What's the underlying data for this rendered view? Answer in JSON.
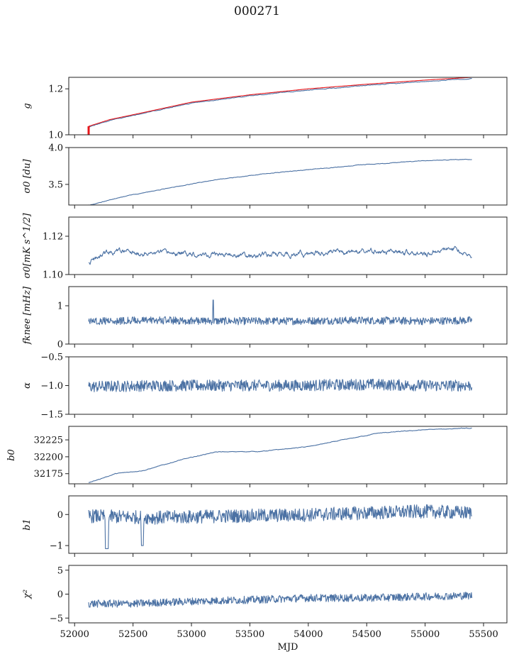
{
  "title": "000271",
  "chart_data": {
    "type": "line",
    "xlabel": "MJD",
    "xlim": [
      51950,
      55700
    ],
    "xticks": [
      52000,
      52500,
      53000,
      53500,
      54000,
      54500,
      55000,
      55500
    ],
    "x_start": 52120,
    "x_end": 55400,
    "colors": {
      "main": "#4c72a4",
      "overlay": "#e8161a"
    },
    "panels": [
      {
        "id": "g",
        "ylabel": "g",
        "ylim": [
          1.0,
          1.25
        ],
        "yticks": [
          1.0,
          1.2
        ],
        "yticklabels": [
          "1.0",
          "1.2"
        ],
        "series": [
          {
            "color": "#4c72a4",
            "points": [
              [
                52120,
                1.033
              ],
              [
                52300,
                1.063
              ],
              [
                52600,
                1.095
              ],
              [
                53000,
                1.138
              ],
              [
                53500,
                1.17
              ],
              [
                54000,
                1.195
              ],
              [
                54500,
                1.215
              ],
              [
                55000,
                1.232
              ],
              [
                55400,
                1.244
              ]
            ]
          },
          {
            "color": "#e8161a",
            "points": [
              [
                52120,
                1.037
              ],
              [
                52300,
                1.066
              ],
              [
                52600,
                1.098
              ],
              [
                53000,
                1.142
              ],
              [
                53500,
                1.174
              ],
              [
                54000,
                1.2
              ],
              [
                54500,
                1.22
              ],
              [
                55000,
                1.238
              ],
              [
                55400,
                1.25
              ]
            ]
          }
        ]
      },
      {
        "id": "sigma0-du",
        "ylabel": "σ0 [du]",
        "ylim": [
          3.22,
          4.0
        ],
        "yticks": [
          3.5,
          4.0
        ],
        "yticklabels": [
          "3.5",
          "4.0"
        ],
        "series": [
          {
            "color": "#4c72a4",
            "points": [
              [
                52130,
                3.22
              ],
              [
                52400,
                3.33
              ],
              [
                52800,
                3.45
              ],
              [
                53200,
                3.56
              ],
              [
                53600,
                3.64
              ],
              [
                54000,
                3.7
              ],
              [
                54500,
                3.77
              ],
              [
                55000,
                3.82
              ],
              [
                55300,
                3.84
              ],
              [
                55400,
                3.84
              ]
            ]
          }
        ]
      },
      {
        "id": "sigma0-mk",
        "ylabel": "σ0[mK s^1/2]",
        "ylim": [
          1.1,
          1.13
        ],
        "yticks": [
          1.1,
          1.12
        ],
        "yticklabels": [
          "1.10",
          "1.12"
        ],
        "series": [
          {
            "color": "#4c72a4",
            "points": [
              [
                52120,
                1.106
              ],
              [
                52300,
                1.112
              ],
              [
                52600,
                1.111
              ],
              [
                53000,
                1.111
              ],
              [
                53500,
                1.11
              ],
              [
                54000,
                1.111
              ],
              [
                54500,
                1.112
              ],
              [
                55000,
                1.111
              ],
              [
                55250,
                1.114
              ],
              [
                55400,
                1.109
              ]
            ]
          }
        ]
      },
      {
        "id": "fknee",
        "ylabel": "fknee [mHz]",
        "ylim": [
          0,
          1.5
        ],
        "yticks": [
          0,
          1
        ],
        "yticklabels": [
          "0",
          "1"
        ],
        "series": [
          {
            "color": "#4c72a4",
            "points": [
              [
                52120,
                0.6
              ],
              [
                52700,
                0.62
              ],
              [
                53200,
                0.6
              ],
              [
                53800,
                0.6
              ],
              [
                54400,
                0.62
              ],
              [
                55000,
                0.6
              ],
              [
                55400,
                0.62
              ]
            ]
          }
        ]
      },
      {
        "id": "alpha",
        "ylabel": "α",
        "ylim": [
          -1.5,
          -0.5
        ],
        "yticks": [
          -1.5,
          -1.0,
          -0.5
        ],
        "yticklabels": [
          "−1.5",
          "−1.0",
          "−0.5"
        ],
        "series": [
          {
            "color": "#4c72a4",
            "points": [
              [
                52120,
                -1.02
              ],
              [
                52700,
                -1.0
              ],
              [
                53300,
                -1.0
              ],
              [
                53900,
                -1.0
              ],
              [
                54500,
                -0.98
              ],
              [
                55000,
                -1.0
              ],
              [
                55400,
                -1.0
              ]
            ]
          }
        ]
      },
      {
        "id": "b0",
        "ylabel": "b0",
        "ylim": [
          32160,
          32245
        ],
        "yticks": [
          32175,
          32200,
          32225
        ],
        "yticklabels": [
          "32175",
          "32200",
          "32225"
        ],
        "series": [
          {
            "color": "#4c72a4",
            "points": [
              [
                52130,
                32162
              ],
              [
                52350,
                32175
              ],
              [
                52600,
                32180
              ],
              [
                52900,
                32195
              ],
              [
                53200,
                32207
              ],
              [
                53600,
                32208
              ],
              [
                54000,
                32215
              ],
              [
                54300,
                32225
              ],
              [
                54600,
                32235
              ],
              [
                55000,
                32240
              ],
              [
                55300,
                32242
              ],
              [
                55400,
                32242
              ]
            ]
          }
        ]
      },
      {
        "id": "b1",
        "ylabel": "b1",
        "ylim": [
          -1.25,
          0.6
        ],
        "yticks": [
          -1,
          0
        ],
        "yticklabels": [
          "−1",
          "0"
        ],
        "series": [
          {
            "color": "#4c72a4",
            "points": [
              [
                52120,
                -0.05
              ],
              [
                52700,
                -0.1
              ],
              [
                53300,
                -0.05
              ],
              [
                53900,
                -0.02
              ],
              [
                54500,
                0.05
              ],
              [
                55000,
                0.1
              ],
              [
                55400,
                0.05
              ]
            ]
          }
        ]
      },
      {
        "id": "chi2",
        "ylabel": "χ²",
        "ylim": [
          -6,
          6
        ],
        "yticks": [
          -5,
          0,
          5
        ],
        "yticklabels": [
          "−5",
          "0",
          "5"
        ],
        "series": [
          {
            "color": "#4c72a4",
            "points": [
              [
                52120,
                -2.0
              ],
              [
                52500,
                -2.0
              ],
              [
                53000,
                -1.5
              ],
              [
                53500,
                -1.2
              ],
              [
                54000,
                -0.8
              ],
              [
                54500,
                -0.8
              ],
              [
                55000,
                -0.5
              ],
              [
                55400,
                -0.3
              ]
            ]
          }
        ]
      }
    ]
  }
}
